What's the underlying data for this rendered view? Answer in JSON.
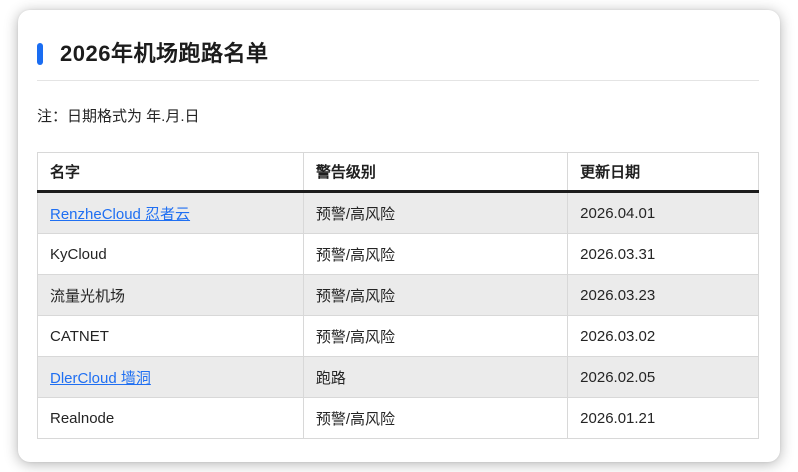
{
  "page": {
    "title": "2026年机场跑路名单",
    "note": "注：日期格式为 年.月.日"
  },
  "table": {
    "columns": [
      "名字",
      "警告级别",
      "更新日期"
    ],
    "rows": [
      {
        "name": "RenzheCloud 忍者云",
        "is_link": true,
        "level": "预警/高风险",
        "date": "2026.04.01"
      },
      {
        "name": "KyCloud",
        "is_link": false,
        "level": "预警/高风险",
        "date": "2026.03.31"
      },
      {
        "name": "流量光机场",
        "is_link": false,
        "level": "预警/高风险",
        "date": "2026.03.23"
      },
      {
        "name": "CATNET",
        "is_link": false,
        "level": "预警/高风险",
        "date": "2026.03.02"
      },
      {
        "name": "DlerCloud 墙洞",
        "is_link": true,
        "level": "跑路",
        "date": "2026.02.05"
      },
      {
        "name": "Realnode",
        "is_link": false,
        "level": "预警/高风险",
        "date": "2026.01.21"
      }
    ]
  },
  "colors": {
    "accent": "#1a6df2",
    "link": "#1f6ff2",
    "row_alt_bg": "#ebebeb",
    "cell_border": "#d8d8d8",
    "header_rule": "#1c1c1c"
  }
}
